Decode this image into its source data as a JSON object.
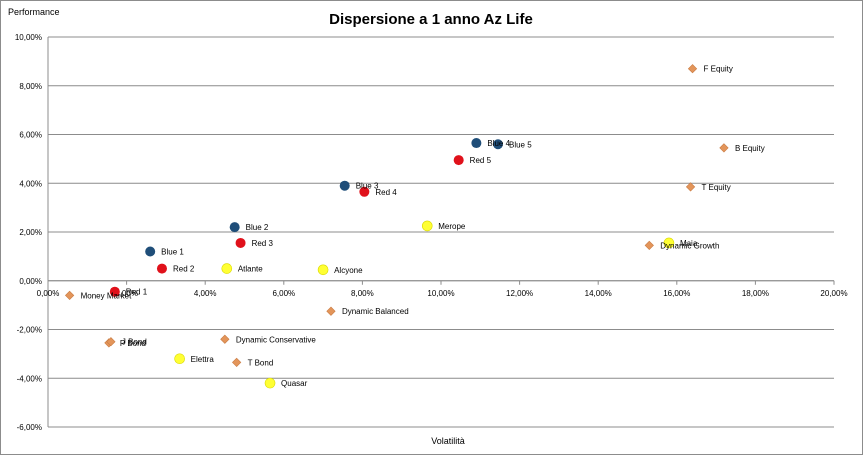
{
  "chart_data": {
    "type": "scatter",
    "title": "Dispersione a 1 anno Az Life",
    "xlabel": "Volatilità",
    "ylabel": "Performance",
    "xlim": [
      0,
      20
    ],
    "ylim": [
      -6,
      10
    ],
    "x_ticks": [
      0,
      2,
      4,
      6,
      8,
      10,
      12,
      14,
      16,
      18,
      20
    ],
    "y_ticks": [
      -6,
      -4,
      -2,
      0,
      2,
      4,
      6,
      8,
      10
    ],
    "x_tick_labels": [
      "0,00%",
      "2,00%",
      "4,00%",
      "6,00%",
      "8,00%",
      "10,00%",
      "12,00%",
      "14,00%",
      "16,00%",
      "18,00%",
      "20,00%"
    ],
    "y_tick_labels": [
      "-6,00%",
      "-4,00%",
      "-2,00%",
      "0,00%",
      "2,00%",
      "4,00%",
      "6,00%",
      "8,00%",
      "10,00%"
    ],
    "grid": true,
    "legend": "none",
    "series": [
      {
        "name": "Blue",
        "color": "#1F4E79",
        "marker": "circle",
        "points": [
          {
            "label": "Blue 1",
            "x": 2.6,
            "y": 1.2
          },
          {
            "label": "Blue 2",
            "x": 4.75,
            "y": 2.2
          },
          {
            "label": "Blue 3",
            "x": 7.55,
            "y": 3.9
          },
          {
            "label": "Blue 4",
            "x": 10.9,
            "y": 5.65
          },
          {
            "label": "Blue 5",
            "x": 11.45,
            "y": 5.6
          }
        ]
      },
      {
        "name": "Red",
        "color": "#E0111B",
        "marker": "circle",
        "points": [
          {
            "label": "Red 1",
            "x": 1.7,
            "y": -0.45
          },
          {
            "label": "Red 2",
            "x": 2.9,
            "y": 0.5
          },
          {
            "label": "Red 3",
            "x": 4.9,
            "y": 1.55
          },
          {
            "label": "Red 4",
            "x": 8.05,
            "y": 3.65
          },
          {
            "label": "Red 5",
            "x": 10.45,
            "y": 4.95
          }
        ]
      },
      {
        "name": "Yellow",
        "color": "#FFFF33",
        "marker": "circle",
        "points": [
          {
            "label": "Atlante",
            "x": 4.55,
            "y": 0.5
          },
          {
            "label": "Alcyone",
            "x": 7.0,
            "y": 0.45
          },
          {
            "label": "Merope",
            "x": 9.65,
            "y": 2.25
          },
          {
            "label": "Maia",
            "x": 15.8,
            "y": 1.55
          },
          {
            "label": "Elettra",
            "x": 3.35,
            "y": -3.2
          },
          {
            "label": "Quasar",
            "x": 5.65,
            "y": -4.2
          }
        ]
      },
      {
        "name": "Orange",
        "color": "#E3955A",
        "marker": "diamond",
        "points": [
          {
            "label": "Money Market",
            "x": 0.55,
            "y": -0.6
          },
          {
            "label": "P Bond",
            "x": 1.55,
            "y": -2.55
          },
          {
            "label": "J Bond",
            "x": 1.6,
            "y": -2.5
          },
          {
            "label": "Dynamic Conservative",
            "x": 4.5,
            "y": -2.4
          },
          {
            "label": "T Bond",
            "x": 4.8,
            "y": -3.35
          },
          {
            "label": "Dynamic Balanced",
            "x": 7.2,
            "y": -1.25
          },
          {
            "label": "Dynamic Growth",
            "x": 15.3,
            "y": 1.45
          },
          {
            "label": "F Equity",
            "x": 16.4,
            "y": 8.7
          },
          {
            "label": "B Equity",
            "x": 17.2,
            "y": 5.45
          },
          {
            "label": "T Equity",
            "x": 16.35,
            "y": 3.85
          }
        ]
      }
    ]
  }
}
